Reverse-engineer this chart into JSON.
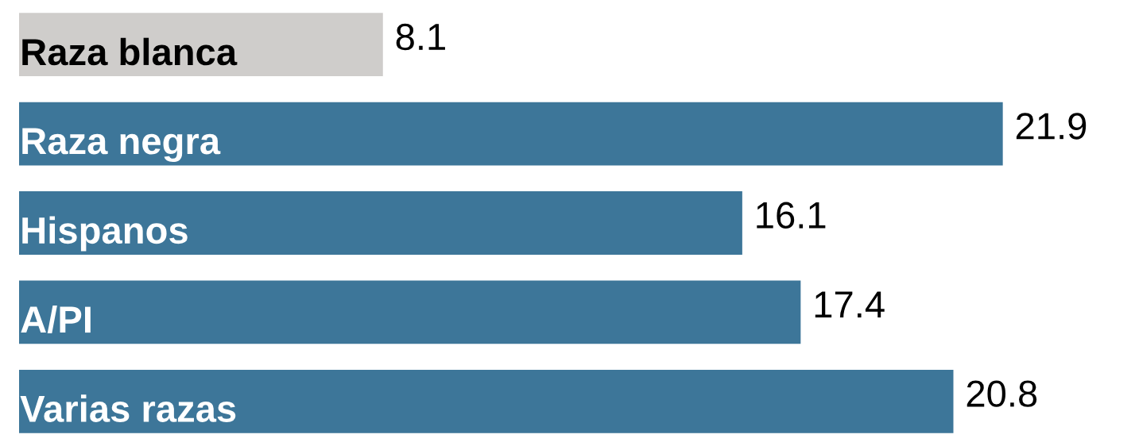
{
  "chart_data": {
    "type": "bar",
    "orientation": "horizontal",
    "categories": [
      "Raza blanca",
      "Raza negra",
      "Hispanos",
      "A/PI",
      "Varias razas"
    ],
    "values": [
      8.1,
      21.9,
      16.1,
      17.4,
      20.8
    ],
    "colors": [
      "#cfcdcb",
      "#3d7699",
      "#3d7699",
      "#3d7699",
      "#3d7699"
    ],
    "data_labels": true
  }
}
